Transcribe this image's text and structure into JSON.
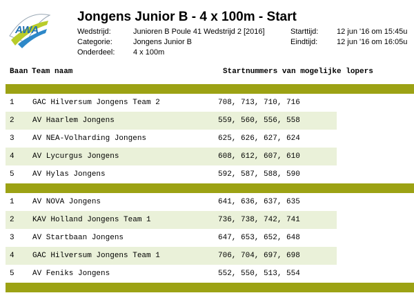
{
  "header": {
    "title": "Jongens Junior B - 4 x 100m - Start",
    "meta": [
      {
        "label": "Wedstrijd:",
        "value": "Junioren B Poule 41 Wedstrijd 2 [2016]",
        "label2": "Starttijd:",
        "value2": "12 jun '16 om 15:45u"
      },
      {
        "label": "Categorie:",
        "value": "Jongens Junior B",
        "label2": "Eindtijd:",
        "value2": "12 jun '16 om 16:05u"
      },
      {
        "label": "Onderdeel:",
        "value": "4 x 100m",
        "label2": "",
        "value2": ""
      }
    ]
  },
  "logo": {
    "text": "AWA"
  },
  "columns": {
    "baan": "Baan",
    "team": "Team naam",
    "nums": "Startnummers van mogelijke lopers"
  },
  "colors": {
    "bar": "#9ca214",
    "shade": "#eaf1d9"
  },
  "series": [
    [
      {
        "baan": "1",
        "team": "GAC Hilversum Jongens Team 2",
        "nums": "708, 713, 710, 716"
      },
      {
        "baan": "2",
        "team": "AV Haarlem Jongens",
        "nums": "559, 560, 556, 558"
      },
      {
        "baan": "3",
        "team": "AV NEA-Volharding Jongens",
        "nums": "625, 626, 627, 624"
      },
      {
        "baan": "4",
        "team": "AV Lycurgus Jongens",
        "nums": "608, 612, 607, 610"
      },
      {
        "baan": "5",
        "team": "AV Hylas Jongens",
        "nums": "592, 587, 588, 590"
      }
    ],
    [
      {
        "baan": "1",
        "team": "AV NOVA Jongens",
        "nums": "641, 636, 637, 635"
      },
      {
        "baan": "2",
        "team": "KAV Holland Jongens Team 1",
        "nums": "736, 738, 742, 741"
      },
      {
        "baan": "3",
        "team": "AV Startbaan Jongens",
        "nums": "647, 653, 652, 648"
      },
      {
        "baan": "4",
        "team": "GAC Hilversum Jongens Team 1",
        "nums": "706, 704, 697, 698"
      },
      {
        "baan": "5",
        "team": "AV Feniks Jongens",
        "nums": "552, 550, 513, 554"
      }
    ]
  ]
}
